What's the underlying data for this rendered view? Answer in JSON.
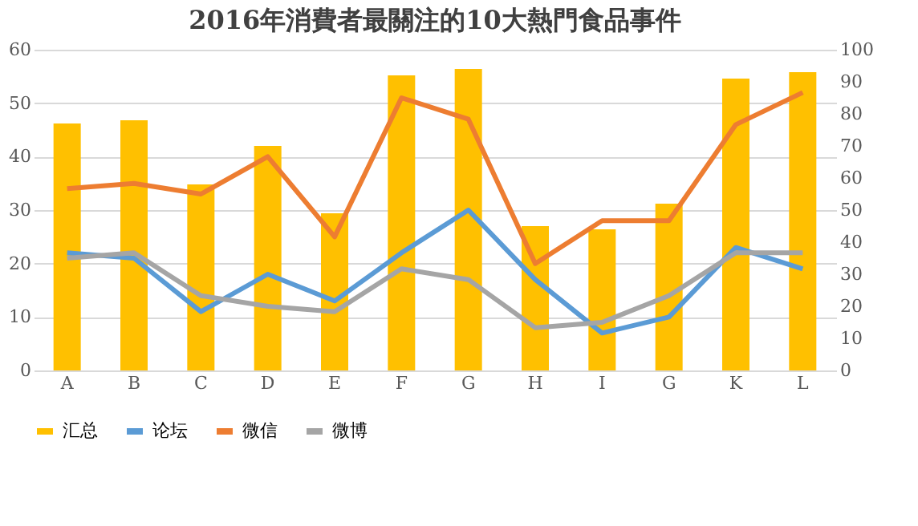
{
  "chart_data": {
    "type": "line",
    "title": "2016年消費者最關注的10大熱門食品事件",
    "categories": [
      "A",
      "B",
      "C",
      "D",
      "E",
      "F",
      "G",
      "H",
      "I",
      "G",
      "K",
      "L"
    ],
    "series": [
      {
        "name": "汇总",
        "type": "bar",
        "axis": "y2",
        "color": "#ffc000",
        "values": [
          77,
          78,
          58,
          70,
          49,
          92,
          94,
          45,
          44,
          52,
          91,
          93
        ]
      },
      {
        "name": "论坛",
        "color": "#5b9bd5",
        "values": [
          22,
          21,
          11,
          18,
          13,
          22,
          30,
          17,
          7,
          10,
          23,
          19
        ]
      },
      {
        "name": "微信",
        "color": "#ed7d31",
        "values": [
          34,
          35,
          33,
          40,
          25,
          51,
          47,
          20,
          28,
          28,
          46,
          52
        ]
      },
      {
        "name": "微博",
        "color": "#a5a5a5",
        "values": [
          21,
          22,
          14,
          12,
          11,
          19,
          17,
          8,
          9,
          14,
          22,
          22
        ]
      }
    ],
    "ylim": [
      0,
      60
    ],
    "yticks": [
      0,
      10,
      20,
      30,
      40,
      50,
      60
    ],
    "y2lim": [
      0,
      100
    ],
    "y2ticks": [
      0,
      10,
      20,
      30,
      40,
      50,
      60,
      70,
      80,
      90,
      100
    ],
    "grid": "y",
    "legend": "bottom",
    "marker": "none",
    "line_style": "solid"
  }
}
